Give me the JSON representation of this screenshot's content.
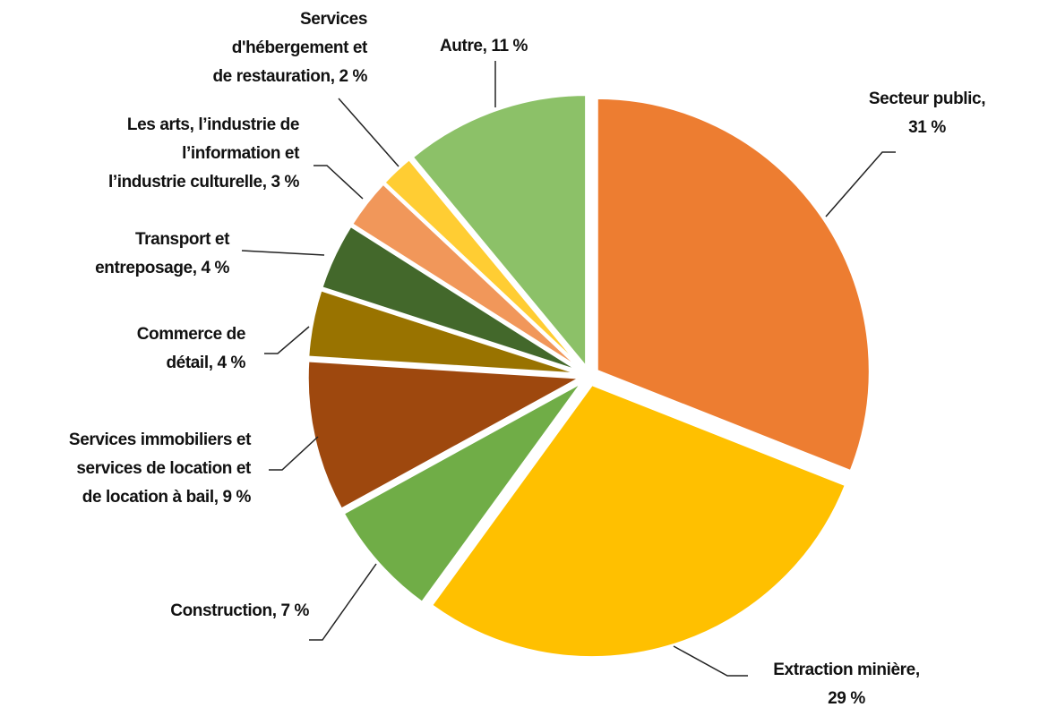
{
  "chart_data": {
    "type": "pie",
    "values": [
      31,
      29,
      7,
      9,
      4,
      4,
      3,
      2,
      11
    ],
    "value_labels": [
      "Secteur public,\n31 %",
      "Extraction minière,\n29 %",
      "Construction, 7 %",
      "Services immobiliers et\nservices de location et\nde location à bail, 9 %",
      "Commerce de\ndétail, 4 %",
      "Transport et\nentreposage, 4 %",
      "Les arts, l’industrie de\nl’information et\nl’industrie culturelle, 3 %",
      "Services\nd'hébergement et\nde restauration, 2 %",
      "Autre, 11 %"
    ],
    "colors": [
      "#ED7D31",
      "#FFC000",
      "#70AD47",
      "#9E480E",
      "#997300",
      "#43682B",
      "#F1975A",
      "#FFCD33",
      "#8CC168"
    ]
  }
}
